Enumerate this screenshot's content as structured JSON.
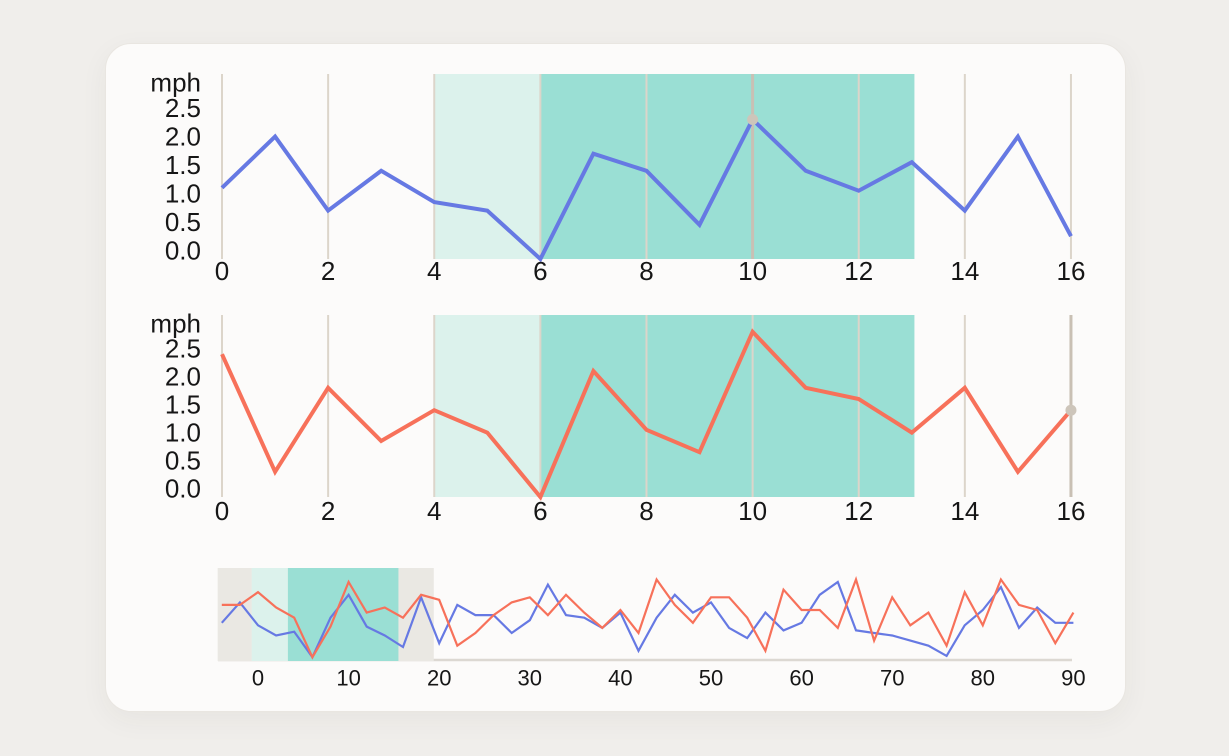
{
  "page": {
    "background": "#f0eeeb",
    "card_background": "#fcfbfa",
    "card_border": "#e9e6e1"
  },
  "colors": {
    "series_a": "#6679e3",
    "series_b": "#f7715a",
    "region_light": "#dcf2ec",
    "region_dark": "#9adfd4",
    "region_window": "#eae8e3",
    "marker": "#c9c0b4",
    "marker_dot": "#cdc5ba",
    "gridline": "#dcd5ca",
    "axis_line": "#dcd8d2",
    "tick_text": "#161616"
  },
  "chart_data": [
    {
      "type": "line",
      "id": "speed-detail-top",
      "unit_label": "mph",
      "x_ticks": [
        0,
        2,
        4,
        6,
        8,
        10,
        12,
        14,
        16
      ],
      "y_ticks": [
        0,
        0.5,
        1,
        1.5,
        2,
        2.5
      ],
      "xlim": [
        0,
        16
      ],
      "ylim": [
        -0.15,
        3.1
      ],
      "grid": true,
      "series": [
        {
          "name": "speed-a",
          "color_key": "series_a",
          "x": [
            0,
            1,
            2,
            3,
            4,
            5,
            6,
            7,
            8,
            9,
            10,
            11,
            12,
            13,
            14,
            15,
            16
          ],
          "values": [
            1.1,
            2.0,
            0.7,
            1.4,
            0.85,
            0.7,
            -0.15,
            1.7,
            1.4,
            0.45,
            2.3,
            1.4,
            1.05,
            1.55,
            0.7,
            2.0,
            0.25
          ]
        }
      ],
      "regions": [
        {
          "from": 4,
          "to": 6,
          "tone": "region_light"
        },
        {
          "from": 6,
          "to": 13.05,
          "tone": "region_dark"
        }
      ],
      "marker": {
        "x": 10,
        "value": 2.3
      }
    },
    {
      "type": "line",
      "id": "speed-detail-bottom",
      "unit_label": "mph",
      "x_ticks": [
        0,
        2,
        4,
        6,
        8,
        10,
        12,
        14,
        16
      ],
      "y_ticks": [
        0,
        0.5,
        1,
        1.5,
        2,
        2.5
      ],
      "xlim": [
        0,
        16
      ],
      "ylim": [
        -0.15,
        3.1
      ],
      "grid": true,
      "series": [
        {
          "name": "speed-b",
          "color_key": "series_b",
          "x": [
            0,
            1,
            2,
            3,
            4,
            5,
            6,
            7,
            8,
            9,
            10,
            11,
            12,
            13,
            14,
            15,
            16
          ],
          "values": [
            2.4,
            0.3,
            1.8,
            0.85,
            1.4,
            1.0,
            -0.15,
            2.1,
            1.05,
            0.65,
            2.8,
            1.8,
            1.6,
            1.0,
            1.8,
            0.3,
            1.4
          ]
        }
      ],
      "regions": [
        {
          "from": 4,
          "to": 6,
          "tone": "region_light"
        },
        {
          "from": 6,
          "to": 13.05,
          "tone": "region_dark"
        }
      ],
      "marker": {
        "x": 16,
        "value": 1.4
      }
    },
    {
      "type": "line",
      "id": "overview-brush",
      "unit_label": "",
      "x_ticks": [
        0,
        10,
        20,
        30,
        40,
        50,
        60,
        70,
        80,
        90
      ],
      "y_ticks": [],
      "xlim": [
        -4.45,
        90.3
      ],
      "ylim": [
        -0.3,
        3.35
      ],
      "grid": false,
      "axis_line": true,
      "x_start": -4,
      "x_step": 2,
      "series": [
        {
          "name": "speed-a",
          "color_key": "series_a",
          "values": [
            1.2,
            2.0,
            1.1,
            0.7,
            0.85,
            -0.15,
            1.4,
            2.3,
            1.05,
            0.7,
            0.25,
            2.2,
            0.4,
            1.9,
            1.5,
            1.5,
            0.8,
            1.3,
            2.7,
            1.5,
            1.4,
            1.0,
            1.6,
            0.1,
            1.4,
            2.3,
            1.6,
            2.0,
            1.0,
            0.6,
            1.6,
            0.9,
            1.2,
            2.3,
            2.8,
            0.9,
            0.8,
            0.7,
            0.5,
            0.3,
            -0.1,
            1.1,
            1.7,
            2.6,
            1.0,
            1.8,
            1.2,
            1.2
          ]
        },
        {
          "name": "speed-b",
          "color_key": "series_b",
          "values": [
            1.9,
            1.9,
            2.4,
            1.8,
            1.4,
            -0.15,
            1.05,
            2.8,
            1.6,
            1.8,
            1.4,
            2.3,
            2.1,
            0.3,
            0.8,
            1.5,
            2.0,
            2.2,
            1.5,
            2.3,
            1.6,
            1.0,
            1.7,
            0.8,
            2.9,
            1.9,
            1.2,
            2.2,
            2.2,
            1.4,
            0.1,
            2.5,
            1.7,
            1.7,
            1.0,
            2.9,
            0.5,
            2.2,
            1.1,
            1.6,
            0.3,
            2.4,
            1.1,
            2.9,
            1.9,
            1.7,
            0.4,
            1.6
          ]
        }
      ],
      "regions": [
        {
          "from": -4.45,
          "to": 19.4,
          "tone": "region_window"
        },
        {
          "from": -0.7,
          "to": 3.3,
          "tone": "region_light"
        },
        {
          "from": 3.3,
          "to": 15.5,
          "tone": "region_dark"
        }
      ]
    }
  ]
}
